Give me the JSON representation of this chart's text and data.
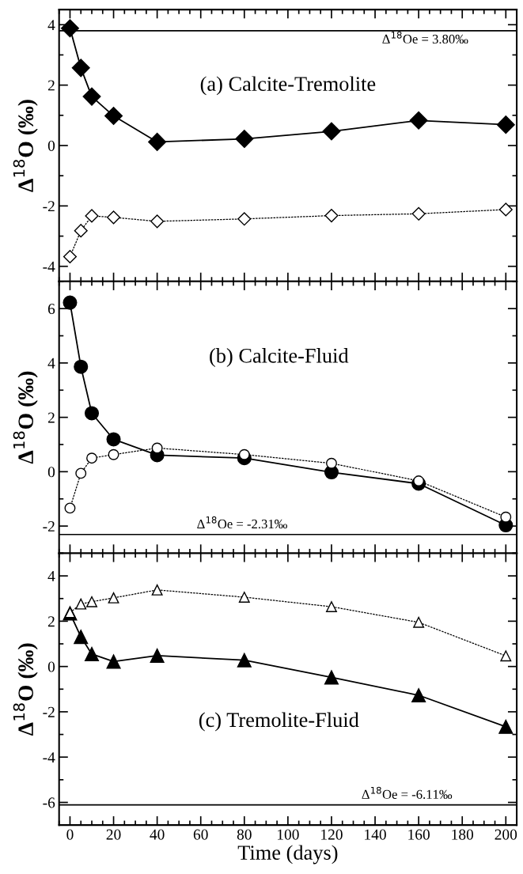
{
  "chart_data": [
    {
      "type": "line",
      "title": "(a) Calcite-Tremolite",
      "ylabel": "Δ$^{18}$O (‰)",
      "x": [
        0,
        5,
        10,
        20,
        40,
        80,
        120,
        160,
        200
      ],
      "series": [
        {
          "color": "#000000",
          "marker": "diamond",
          "line_style": "solid",
          "values": [
            3.88,
            2.57,
            1.62,
            0.98,
            0.12,
            0.22,
            0.47,
            0.83,
            0.69
          ]
        },
        {
          "color": "#000000",
          "marker": "diamond",
          "line_style": "dotted",
          "values": [
            -3.68,
            -2.82,
            -2.33,
            -2.38,
            -2.51,
            -2.43,
            -2.32,
            -2.26,
            -2.12
          ]
        }
      ],
      "ref_lines": [
        {
          "axis": "y",
          "value": 3.8,
          "color": "#000000",
          "label": "Δ$^{18}$Oe = 3.80‰"
        }
      ],
      "xlim": [
        -5,
        205
      ],
      "xticks": [
        0,
        20,
        40,
        60,
        80,
        100,
        120,
        140,
        160,
        180,
        200
      ],
      "ylim": [
        -4.5,
        4.5
      ],
      "yticks": [
        -4,
        -2,
        0,
        2,
        4
      ],
      "tick_labels": "y"
    },
    {
      "type": "line",
      "title": "(b) Calcite-Fluid",
      "ylabel": "Δ$^{18}$O (‰)",
      "x": [
        0,
        5,
        10,
        20,
        40,
        80,
        120,
        160,
        200
      ],
      "series": [
        {
          "color": "#000000",
          "marker": "circle",
          "line_style": "solid",
          "values": [
            6.22,
            3.86,
            2.15,
            1.19,
            0.61,
            0.5,
            -0.02,
            -0.44,
            -1.97
          ]
        },
        {
          "color": "#000000",
          "marker": "circle",
          "line_style": "dotted",
          "values": [
            -1.34,
            -0.06,
            0.5,
            0.63,
            0.87,
            0.63,
            0.31,
            -0.34,
            -1.67
          ]
        }
      ],
      "ref_lines": [
        {
          "axis": "y",
          "value": -2.31,
          "color": "#000000",
          "label": "Δ$^{18}$Oe = -2.31‰"
        }
      ],
      "xlim": [
        -5,
        205
      ],
      "xticks": [
        0,
        20,
        40,
        60,
        80,
        100,
        120,
        140,
        160,
        180,
        200
      ],
      "ylim": [
        -3,
        7
      ],
      "yticks": [
        -2,
        0,
        2,
        4,
        6
      ],
      "tick_labels": "y"
    },
    {
      "type": "line",
      "title": "(c) Tremolite-Fluid",
      "xlabel": "Time (days)",
      "ylabel": "Δ$^{18}$O (‰)",
      "x": [
        0,
        5,
        10,
        20,
        40,
        80,
        120,
        160,
        200
      ],
      "series": [
        {
          "color": "#000000",
          "marker": "triangle",
          "line_style": "solid",
          "values": [
            2.35,
            1.31,
            0.55,
            0.22,
            0.48,
            0.28,
            -0.48,
            -1.27,
            -2.66
          ]
        },
        {
          "color": "#000000",
          "marker": "triangle",
          "line_style": "dotted",
          "values": [
            2.38,
            2.76,
            2.86,
            3.03,
            3.38,
            3.06,
            2.64,
            1.95,
            0.47
          ]
        }
      ],
      "ref_lines": [
        {
          "axis": "y",
          "value": -6.11,
          "color": "#000000",
          "label": "Δ$^{18}$Oe = -6.11‰"
        }
      ],
      "xlim": [
        -5,
        205
      ],
      "xticks": [
        0,
        20,
        40,
        60,
        80,
        100,
        120,
        140,
        160,
        180,
        200
      ],
      "ylim": [
        -7,
        5
      ],
      "yticks": [
        -6,
        -4,
        -2,
        0,
        2,
        4
      ]
    }
  ]
}
